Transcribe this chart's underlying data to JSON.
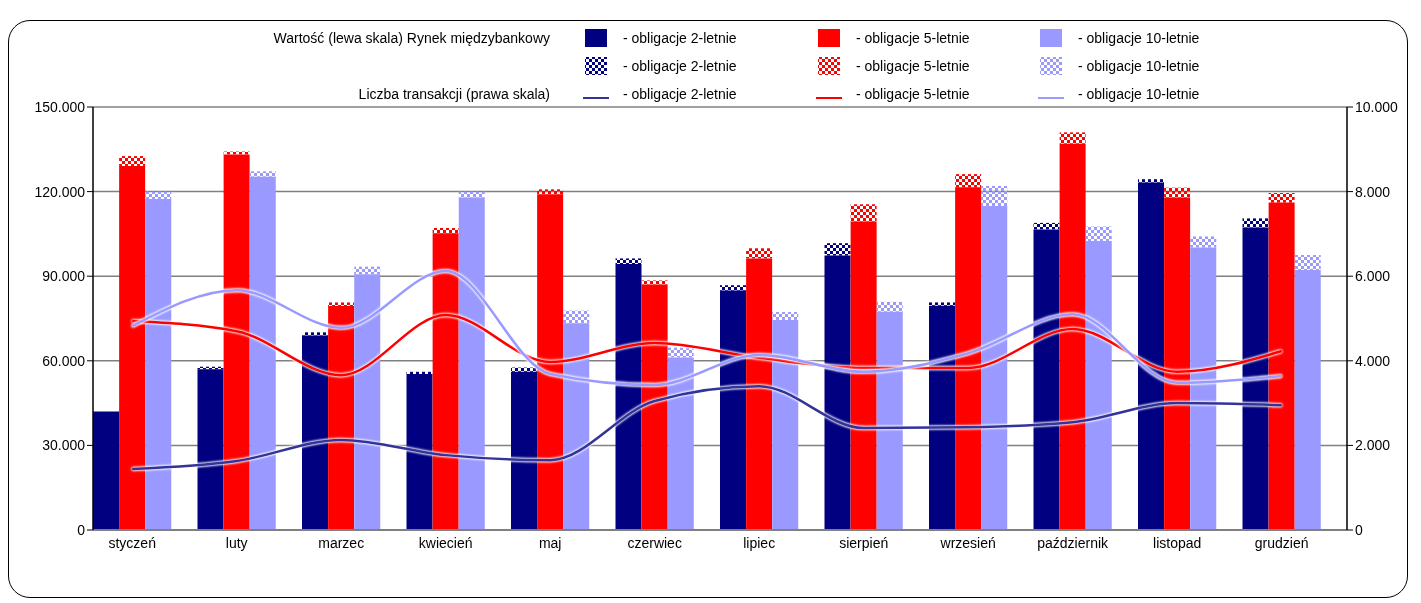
{
  "chart_data": {
    "type": "bar",
    "stacked": true,
    "categories": [
      null,
      "styczeń",
      null,
      null,
      null,
      "luty",
      null,
      null,
      null,
      "marzec",
      null,
      null,
      null,
      "kwiecień",
      null,
      null,
      null,
      "maj",
      null,
      null,
      null,
      "czerwiec",
      null,
      null,
      null,
      "lipiec",
      null,
      null,
      null,
      "sierpień",
      null,
      null,
      null,
      "wrzesień",
      null,
      null,
      null,
      "październik",
      null,
      null,
      null,
      "listopad",
      null,
      null,
      null,
      "grudzień",
      null,
      null
    ],
    "series": [
      {
        "name": "- obligacje 2-letnie",
        "color": "#000080",
        "values": [
          42000,
          null,
          null,
          null,
          57000,
          null,
          null,
          null,
          69000,
          null,
          null,
          null,
          55300,
          null,
          null,
          null,
          56100,
          null,
          null,
          null,
          94300,
          null,
          null,
          null,
          84900,
          null,
          null,
          null,
          97300,
          null,
          null,
          null,
          79500,
          null,
          null,
          null,
          106600,
          null,
          null,
          null,
          123200,
          null,
          null,
          null,
          107300,
          null,
          null,
          null
        ]
      },
      {
        "name": "- obligacje 2-letnie",
        "color": "#000080",
        "values": [
          null,
          null,
          null,
          null,
          900,
          null,
          null,
          null,
          1100,
          null,
          null,
          null,
          800,
          null,
          null,
          null,
          1500,
          null,
          null,
          null,
          2000,
          null,
          null,
          null,
          1900,
          null,
          null,
          null,
          4400,
          null,
          null,
          null,
          1200,
          null,
          null,
          null,
          2300,
          null,
          null,
          null,
          1200,
          null,
          null,
          null,
          3200,
          null,
          null,
          null
        ]
      },
      {
        "name": "- obligacje 5-letnie",
        "color": "#ff0000",
        "values": [
          null,
          129100,
          null,
          null,
          null,
          133200,
          null,
          null,
          null,
          79400,
          null,
          null,
          null,
          105200,
          null,
          null,
          null,
          119100,
          null,
          null,
          null,
          87100,
          null,
          null,
          null,
          96300,
          null,
          null,
          null,
          109400,
          null,
          null,
          null,
          121500,
          null,
          null,
          null,
          137000,
          null,
          null,
          null,
          117900,
          null,
          null,
          null,
          116100,
          null,
          null
        ]
      },
      {
        "name": "- obligacje 5-letnie",
        "color": "#ff0000",
        "values": [
          null,
          3500,
          null,
          null,
          null,
          1000,
          null,
          null,
          null,
          1300,
          null,
          null,
          null,
          1900,
          null,
          null,
          null,
          1700,
          null,
          null,
          null,
          1400,
          null,
          null,
          null,
          3600,
          null,
          null,
          null,
          6100,
          null,
          null,
          null,
          4700,
          null,
          null,
          null,
          4000,
          null,
          null,
          null,
          3500,
          null,
          null,
          null,
          3400,
          null,
          null
        ]
      },
      {
        "name": "- obligacje 10-letnie",
        "color": "#9999ff",
        "values": [
          null,
          null,
          117400,
          null,
          null,
          null,
          125300,
          null,
          null,
          null,
          90700,
          null,
          null,
          null,
          117900,
          null,
          null,
          null,
          73300,
          null,
          null,
          null,
          61200,
          null,
          null,
          null,
          74500,
          null,
          null,
          null,
          77400,
          null,
          null,
          null,
          114900,
          null,
          null,
          null,
          102500,
          null,
          null,
          null,
          100200,
          null,
          null,
          null,
          92200,
          null
        ]
      },
      {
        "name": "- obligacje 10-letnie",
        "color": "#9999ff",
        "values": [
          null,
          null,
          2600,
          null,
          null,
          null,
          1900,
          null,
          null,
          null,
          2700,
          null,
          null,
          null,
          2100,
          null,
          null,
          null,
          4500,
          null,
          null,
          null,
          3500,
          null,
          null,
          null,
          2800,
          null,
          null,
          null,
          3500,
          null,
          null,
          null,
          7100,
          null,
          null,
          null,
          5100,
          null,
          null,
          null,
          3900,
          null,
          null,
          null,
          5300,
          null
        ]
      },
      {
        "name": "- obligacje 2-letnie",
        "type": "line",
        "axis": "y2",
        "color": "#333399",
        "x": [
          "styczeń",
          "luty",
          "marzec",
          "kwiecień",
          "maj",
          "czerwiec",
          "lipiec",
          "sierpień",
          "wrzesień",
          "październik",
          "listopad",
          "grudzień"
        ],
        "values": [
          1440,
          1630,
          2130,
          1770,
          1650,
          3050,
          3400,
          2410,
          2430,
          2550,
          3000,
          2950
        ]
      },
      {
        "name": "- obligacje 5-letnie",
        "type": "line",
        "axis": "y2",
        "color": "#ff0000",
        "x": [
          "styczeń",
          "luty",
          "marzec",
          "kwiecień",
          "maj",
          "czerwiec",
          "lipiec",
          "sierpień",
          "wrzesień",
          "październik",
          "listopad",
          "grudzień"
        ],
        "values": [
          4940,
          4700,
          3660,
          5080,
          3970,
          4420,
          4070,
          3830,
          3830,
          4750,
          3740,
          4230
        ]
      },
      {
        "name": "- obligacje 10-letnie",
        "type": "line",
        "axis": "y2",
        "color": "#9999ff",
        "x": [
          "styczeń",
          "luty",
          "marzec",
          "kwiecień",
          "maj",
          "czerwiec",
          "lipiec",
          "sierpień",
          "wrzesień",
          "październik",
          "listopad",
          "grudzień"
        ],
        "values": [
          4820,
          5670,
          4780,
          6120,
          3690,
          3430,
          4140,
          3740,
          4180,
          5100,
          3480,
          3640
        ]
      }
    ],
    "ylim": [
      0,
      150000
    ],
    "yticks": [
      {
        "value": 0,
        "label": "0"
      },
      {
        "value": 30000,
        "label": "30.000"
      },
      {
        "value": 60000,
        "label": "60.000"
      },
      {
        "value": 90000,
        "label": "90.000"
      },
      {
        "value": 120000,
        "label": "120.000"
      },
      {
        "value": 150000,
        "label": "150.000"
      }
    ],
    "y2lim": [
      0,
      10000
    ],
    "y2ticks": [
      {
        "value": 0,
        "label": "0"
      },
      {
        "value": 2000,
        "label": "2.000"
      },
      {
        "value": 4000,
        "label": "4.000"
      },
      {
        "value": 6000,
        "label": "6.000"
      },
      {
        "value": 8000,
        "label": "8.000"
      },
      {
        "value": 10000,
        "label": "10.000"
      }
    ],
    "grid": "y",
    "legend": "top",
    "annotations": [
      "Wartość (lewa skala) Rynek międzybankowy",
      "Liczba transakcji (prawa skala)"
    ]
  }
}
